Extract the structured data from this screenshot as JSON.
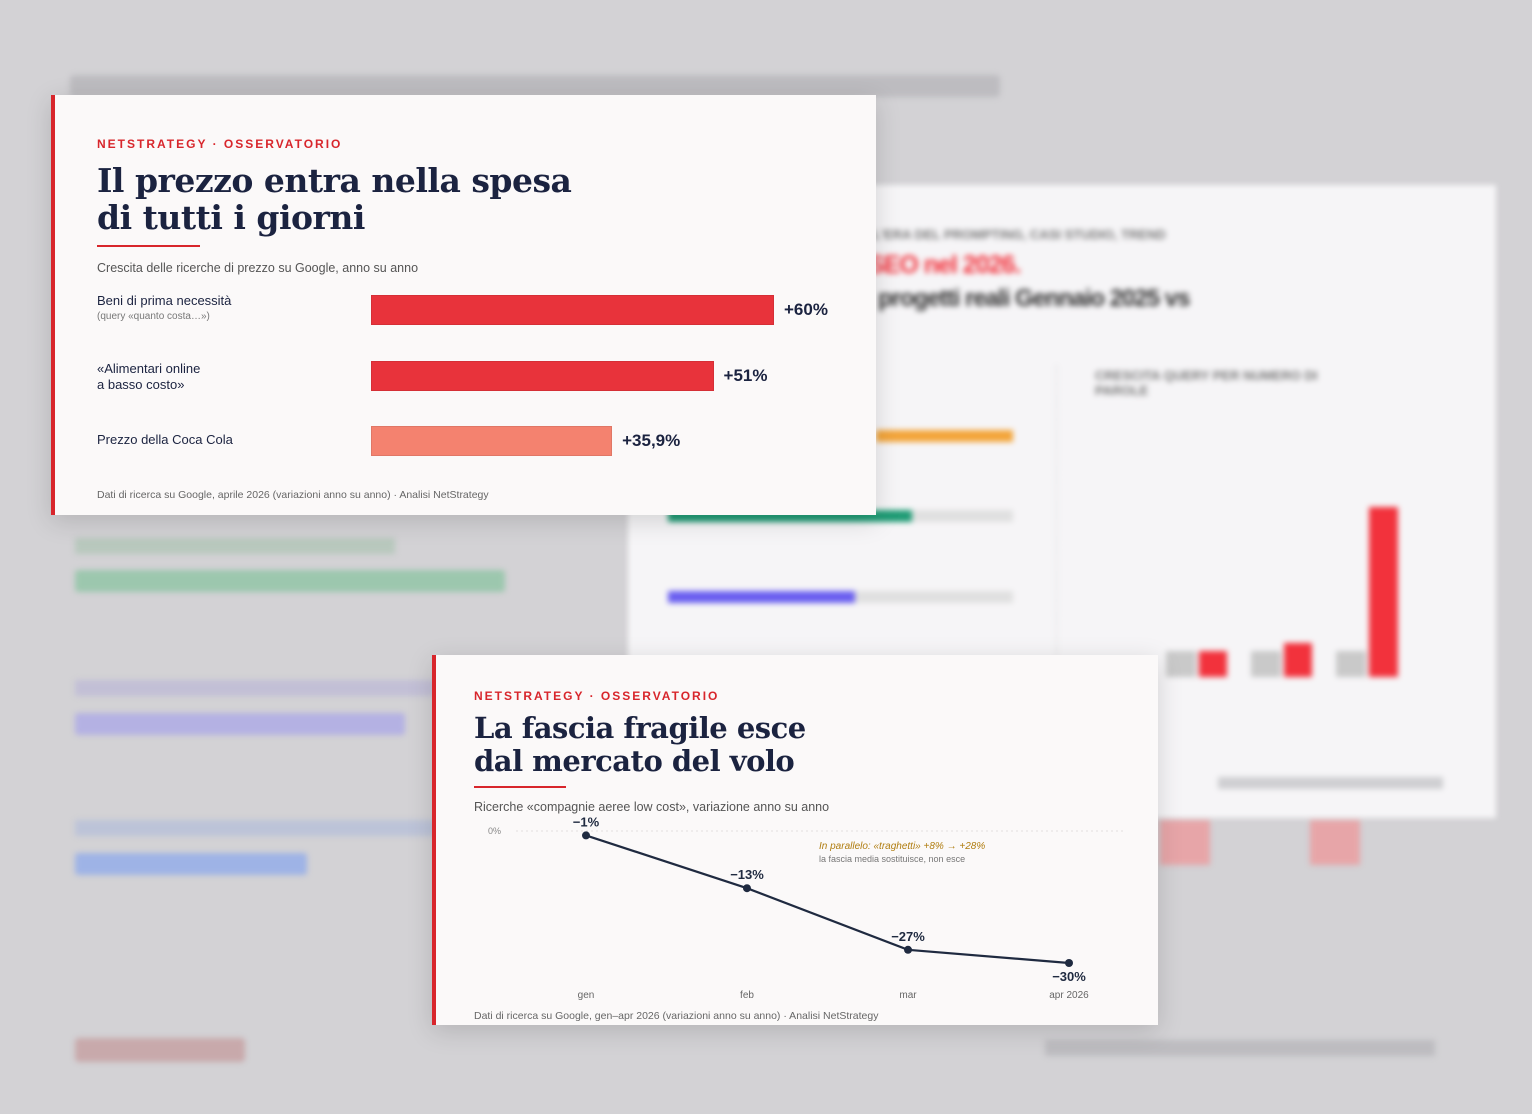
{
  "background": {
    "kicker": "L'ERA DEL PROMPTING, CASI STUDIO, TREND",
    "title_red": "SEO nel 2026.",
    "title": "progetti reali Gennaio 2025 vs",
    "chart_title": "CRESCITA QUERY PER NUMERO DI PAROLE"
  },
  "chart_data": [
    {
      "type": "bar",
      "kicker": "NETSTRATEGY · OSSERVATORIO",
      "title": [
        "Il prezzo entra nella spesa",
        "di tutti i giorni"
      ],
      "subtitle": "Crescita delle ricerche di prezzo su Google, anno su anno",
      "categories": [
        "Beni di prima necessità",
        "«Alimentari online\na basso costo»",
        "Prezzo della Coca Cola"
      ],
      "category_note": "(query «quanto costa…»)",
      "values": [
        60,
        51,
        35.9
      ],
      "value_labels": [
        "+60%",
        "+51%",
        "+35,9%"
      ],
      "colors": [
        "#e8333b",
        "#e8333b",
        "#f4826f"
      ],
      "xlim": [
        0,
        60
      ],
      "source": "Dati di ricerca su Google, aprile 2026 (variazioni anno su anno) · Analisi NetStrategy"
    },
    {
      "type": "line",
      "kicker": "NETSTRATEGY · OSSERVATORIO",
      "title": [
        "La fascia fragile esce",
        "dal mercato del volo"
      ],
      "subtitle": "Ricerche «compagnie aeree low cost», variazione anno su anno",
      "categories": [
        "gen",
        "feb",
        "mar",
        "apr 2026"
      ],
      "values": [
        -1,
        -13,
        -27,
        -30
      ],
      "value_labels": [
        "−1%",
        "−13%",
        "−27%",
        "−30%"
      ],
      "color": "#1f2a40",
      "ylim": [
        -30,
        0
      ],
      "yticks": [
        {
          "value": 0,
          "label": "0%"
        }
      ],
      "annotation": [
        "In parallelo: «traghetti» +8% → +28%",
        "la fascia media sostituisce, non esce"
      ],
      "source": "Dati di ricerca su Google, gen–apr 2026 (variazioni anno su anno) · Analisi NetStrategy"
    }
  ]
}
